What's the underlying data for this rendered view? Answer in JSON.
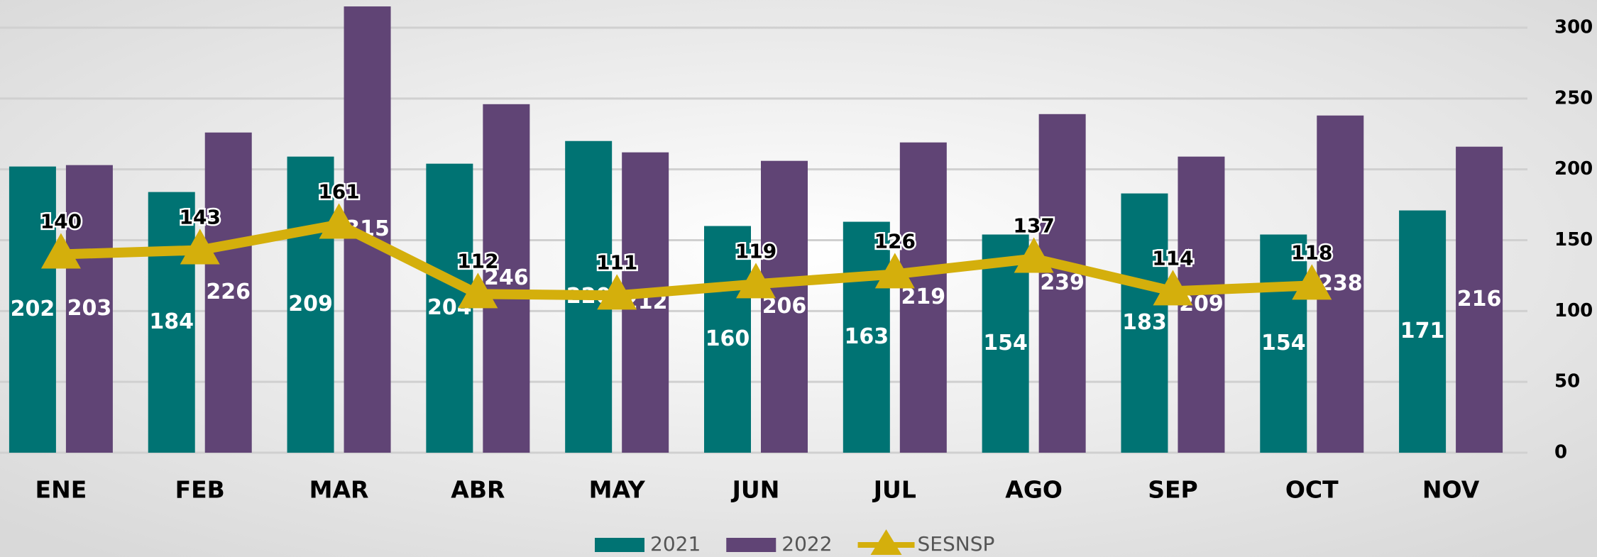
{
  "chart_data": {
    "type": "bar",
    "categories": [
      "ENE",
      "FEB",
      "MAR",
      "ABR",
      "MAY",
      "JUN",
      "JUL",
      "AGO",
      "SEP",
      "OCT",
      "NOV"
    ],
    "series": [
      {
        "name": "2021",
        "type": "bar",
        "color": "#007373",
        "values": [
          202,
          184,
          209,
          204,
          220,
          160,
          163,
          154,
          183,
          154,
          171
        ]
      },
      {
        "name": "2022",
        "type": "bar",
        "color": "#604475",
        "values": [
          203,
          226,
          315,
          246,
          212,
          206,
          219,
          239,
          209,
          238,
          216
        ]
      },
      {
        "name": "SESNSP",
        "type": "line",
        "color": "#D4AF0C",
        "values": [
          140,
          143,
          161,
          112,
          111,
          119,
          126,
          137,
          114,
          118,
          null
        ]
      }
    ],
    "ylim": [
      0,
      300
    ],
    "yticks": [
      0,
      50,
      100,
      150,
      200,
      250,
      300
    ],
    "grid": true,
    "legend": "bottom"
  }
}
